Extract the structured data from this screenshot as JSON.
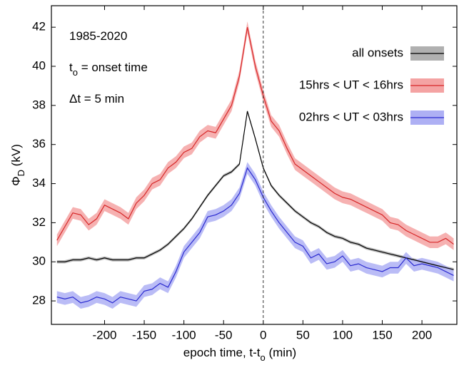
{
  "chart_data": {
    "type": "line",
    "annotations": [
      {
        "main": "1985-2020"
      },
      {
        "main": "t",
        "sub": "o",
        "after": " = onset time"
      },
      {
        "main": "Δt = 5 min"
      }
    ],
    "xlabel": {
      "main": "epoch time, t-t",
      "sub": "o",
      "after": "  (min)"
    },
    "ylabel": {
      "main": "Φ",
      "sub": "D",
      "after": "  (kV)"
    },
    "xlim": [
      -267,
      244
    ],
    "ylim": [
      26.8,
      43.1
    ],
    "xticks": [
      -200,
      -150,
      -100,
      -50,
      0,
      50,
      100,
      150,
      200
    ],
    "yticks": [
      28,
      30,
      32,
      34,
      36,
      38,
      40,
      42
    ],
    "vline": 0,
    "legend": "upper right",
    "x": [
      -260,
      -250,
      -240,
      -230,
      -220,
      -210,
      -200,
      -190,
      -180,
      -170,
      -160,
      -150,
      -140,
      -130,
      -120,
      -110,
      -100,
      -90,
      -80,
      -70,
      -60,
      -50,
      -40,
      -30,
      -20,
      -10,
      0,
      10,
      20,
      30,
      40,
      50,
      60,
      70,
      80,
      90,
      100,
      110,
      120,
      130,
      140,
      150,
      160,
      170,
      180,
      190,
      200,
      210,
      220,
      230,
      240
    ],
    "series": [
      {
        "name": "all onsets",
        "color": "#000000",
        "band_color": "#b0b0b0",
        "error": 0.08,
        "values": [
          30.0,
          30.0,
          30.1,
          30.1,
          30.2,
          30.1,
          30.2,
          30.1,
          30.1,
          30.1,
          30.2,
          30.2,
          30.4,
          30.6,
          30.9,
          31.3,
          31.7,
          32.2,
          32.8,
          33.4,
          33.9,
          34.4,
          34.6,
          35.0,
          37.7,
          36.3,
          34.8,
          33.9,
          33.4,
          33.0,
          32.6,
          32.3,
          32.0,
          31.8,
          31.5,
          31.3,
          31.2,
          31.0,
          30.9,
          30.7,
          30.6,
          30.5,
          30.4,
          30.3,
          30.2,
          30.1,
          30.0,
          29.9,
          29.8,
          29.7,
          29.6
        ]
      },
      {
        "name": "15hrs < UT < 16hrs",
        "color": "#d62728",
        "band_color": "#f4a3a3",
        "error": 0.3,
        "values": [
          31.1,
          31.8,
          32.5,
          32.4,
          31.9,
          32.2,
          32.9,
          32.7,
          32.5,
          32.2,
          33.0,
          33.4,
          34.0,
          34.2,
          34.8,
          35.1,
          35.6,
          35.8,
          36.4,
          36.7,
          36.6,
          37.3,
          38.0,
          39.5,
          42.0,
          40.0,
          38.5,
          37.2,
          36.7,
          35.8,
          35.0,
          34.7,
          34.4,
          34.1,
          33.8,
          33.5,
          33.3,
          33.2,
          33.0,
          32.8,
          32.6,
          32.4,
          32.0,
          31.9,
          31.6,
          31.4,
          31.2,
          31.0,
          31.0,
          31.2,
          30.9
        ]
      },
      {
        "name": "02hrs < UT < 03hrs",
        "color": "#2a2ad0",
        "band_color": "#aeb0f4",
        "error": 0.3,
        "values": [
          28.2,
          28.1,
          28.2,
          27.9,
          28.0,
          28.2,
          28.1,
          27.9,
          28.2,
          28.1,
          28.0,
          28.5,
          28.6,
          28.9,
          28.7,
          29.5,
          30.5,
          31.0,
          31.5,
          32.3,
          32.4,
          32.6,
          32.9,
          33.5,
          34.8,
          34.2,
          33.3,
          32.6,
          32.0,
          31.5,
          31.0,
          30.8,
          30.2,
          30.4,
          29.9,
          30.0,
          30.3,
          29.8,
          29.9,
          29.7,
          29.6,
          29.5,
          29.7,
          29.7,
          30.2,
          29.8,
          29.9,
          29.8,
          29.7,
          29.5,
          29.3
        ]
      }
    ]
  }
}
